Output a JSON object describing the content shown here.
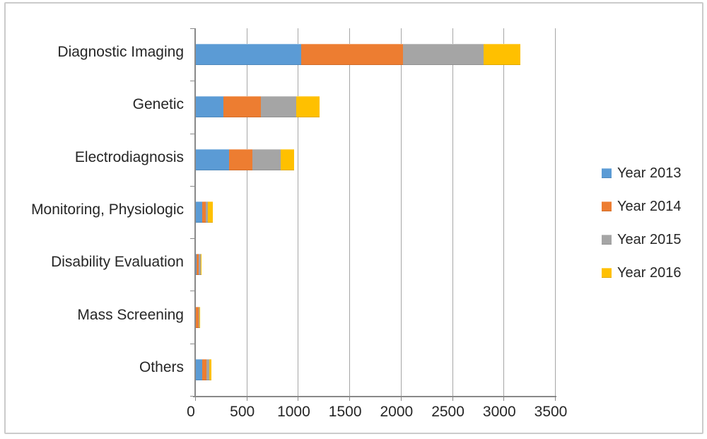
{
  "chart_data": {
    "type": "bar",
    "orientation": "horizontal",
    "stacked": true,
    "title": "",
    "xlabel": "",
    "ylabel": "",
    "xlim": [
      0,
      3500
    ],
    "x_ticks": [
      "0",
      "500",
      "1000",
      "1500",
      "2000",
      "2500",
      "3000",
      "3500"
    ],
    "grid": true,
    "legend_position": "right",
    "categories": [
      "Diagnostic Imaging",
      "Genetic",
      "Electrodiagnosis",
      "Monitoring, Physiologic",
      "Disability Evaluation",
      "Mass Screening",
      "Others"
    ],
    "series": [
      {
        "name": "Year 2013",
        "color": "#5B9BD5",
        "values": [
          1030,
          275,
          330,
          70,
          12,
          5,
          70
        ]
      },
      {
        "name": "Year 2014",
        "color": "#ED7D31",
        "values": [
          990,
          365,
          230,
          35,
          25,
          30,
          40
        ]
      },
      {
        "name": "Year 2015",
        "color": "#A5A5A5",
        "values": [
          785,
          340,
          275,
          20,
          18,
          8,
          30
        ]
      },
      {
        "name": "Year 2016",
        "color": "#FFC000",
        "values": [
          360,
          230,
          130,
          45,
          5,
          7,
          15
        ]
      }
    ],
    "colors": {
      "gridline": "#a6a6a6",
      "axis": "#898989",
      "text": "#262626",
      "background": "#ffffff",
      "border": "#cbcbcb"
    }
  }
}
